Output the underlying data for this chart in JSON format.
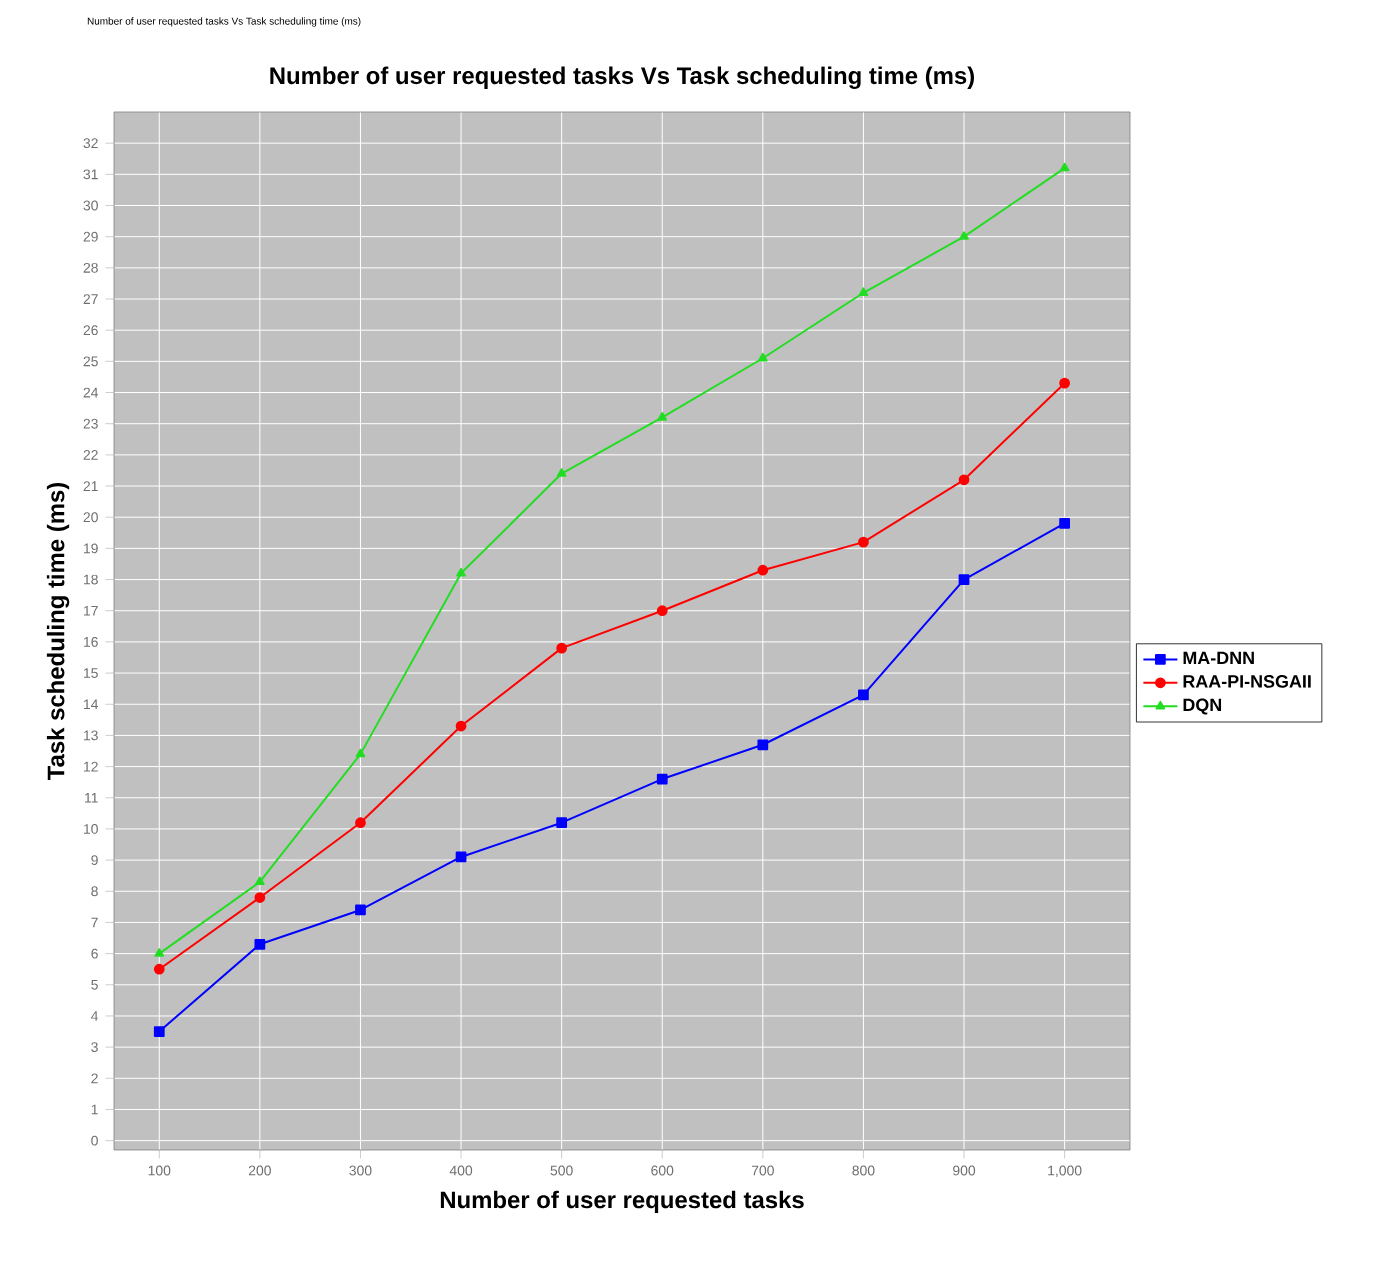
{
  "chart_data": {
    "type": "line",
    "title": "Number of user requested tasks Vs Task scheduling time (ms)",
    "xlabel": "Number of user requested tasks",
    "ylabel": "Task scheduling time (ms)",
    "annotations": [
      "Number of user requested tasks Vs Task scheduling time (ms)"
    ],
    "categories": [
      "100",
      "200",
      "300",
      "400",
      "500",
      "600",
      "700",
      "800",
      "900",
      "1,000"
    ],
    "series": [
      {
        "name": "MA-DNN",
        "color": "#0000ff",
        "marker": "square",
        "values": [
          3.5,
          6.3,
          7.4,
          9.1,
          10.2,
          11.6,
          12.7,
          14.3,
          18.0,
          19.8
        ]
      },
      {
        "name": "RAA-PI-NSGAII",
        "color": "#ff0000",
        "marker": "circle",
        "values": [
          5.5,
          7.8,
          10.2,
          13.3,
          15.8,
          17.0,
          18.3,
          19.2,
          21.2,
          24.3
        ]
      },
      {
        "name": "DQN",
        "color": "#22dd22",
        "marker": "triangle",
        "values": [
          6.0,
          8.3,
          12.4,
          18.2,
          21.4,
          23.2,
          25.1,
          27.2,
          29.0,
          31.2
        ]
      }
    ],
    "ylim": [
      -0.3,
      33
    ],
    "yticks": [
      0,
      1,
      2,
      3,
      4,
      5,
      6,
      7,
      8,
      9,
      10,
      11,
      12,
      13,
      14,
      15,
      16,
      17,
      18,
      19,
      20,
      21,
      22,
      23,
      24,
      25,
      26,
      27,
      28,
      29,
      30,
      31,
      32
    ],
    "grid": true,
    "legend": "right",
    "line_style": "solid"
  }
}
